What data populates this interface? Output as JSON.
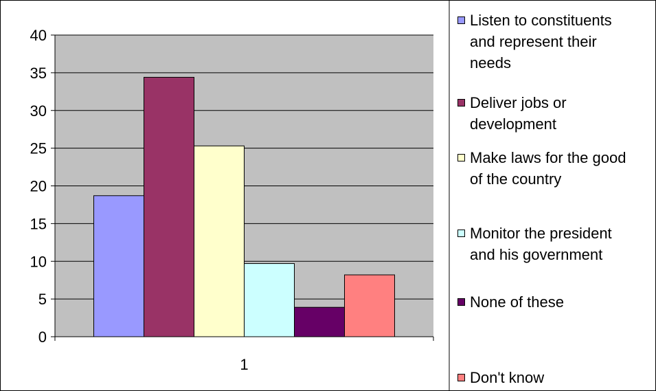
{
  "chart_data": {
    "type": "bar",
    "categories": [
      "1"
    ],
    "series": [
      {
        "name": "Listen to constituents\nand represent their\nneeds",
        "values": [
          18.7
        ],
        "color": "#9999ff"
      },
      {
        "name": "Deliver jobs or\ndevelopment",
        "values": [
          34.4
        ],
        "color": "#993366"
      },
      {
        "name": "Make laws for the good\nof the country",
        "values": [
          25.3
        ],
        "color": "#ffffcc"
      },
      {
        "name": "Monitor the president\nand his government",
        "values": [
          9.7
        ],
        "color": "#ccffff"
      },
      {
        "name": "None of these",
        "values": [
          3.9
        ],
        "color": "#660066"
      },
      {
        "name": "Don't know",
        "values": [
          8.2
        ],
        "color": "#ff8080"
      }
    ],
    "ylim": [
      0,
      40
    ],
    "yticks": [
      "0",
      "5",
      "10",
      "15",
      "20",
      "25",
      "30",
      "35",
      "40"
    ],
    "grid": true,
    "plot_background": "#c0c0c0",
    "legend_position": "right"
  }
}
